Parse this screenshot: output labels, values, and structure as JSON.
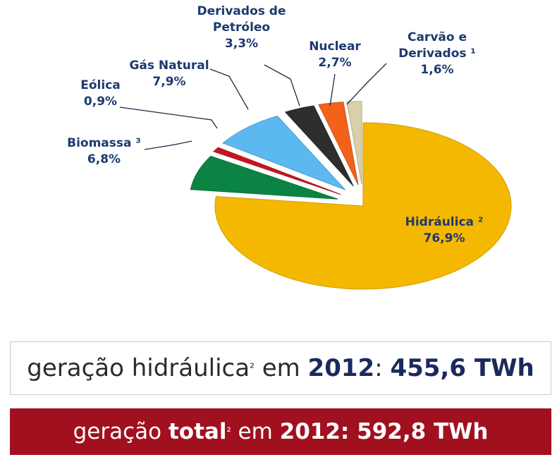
{
  "chart_data": {
    "type": "pie",
    "categories": [
      "Carvão e Derivados ¹",
      "Nuclear",
      "Derivados de Petróleo",
      "Gás Natural",
      "Eólica",
      "Biomassa ³",
      "Hidráulica ²"
    ],
    "values": [
      1.6,
      2.7,
      3.3,
      7.9,
      0.9,
      6.8,
      76.9
    ],
    "value_labels": [
      "1,6%",
      "2,7%",
      "3,3%",
      "7,9%",
      "0,9%",
      "6,8%",
      "76,9%"
    ],
    "colors": [
      "#d9cfa8",
      "#f2621a",
      "#2e2e2e",
      "#5cb9ef",
      "#c8141e",
      "#0b8443",
      "#f5b800"
    ]
  },
  "boxes": [
    {
      "parts": [
        "geração hidráulica",
        "²",
        " em ",
        "2012",
        ": ",
        "455,6 TWh"
      ]
    },
    {
      "parts": [
        "geração ",
        "total",
        "²",
        " em ",
        "2012: 592,8 TWh"
      ]
    }
  ]
}
